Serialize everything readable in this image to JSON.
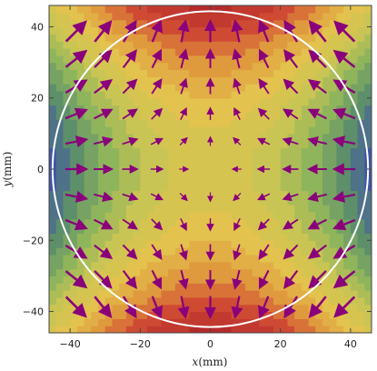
{
  "chart_data": {
    "type": "heatmap",
    "title": "",
    "xlabel": "x",
    "xunit": "(mm)",
    "ylabel": "y",
    "yunit": "(mm)",
    "xlim": [
      -46,
      46
    ],
    "ylim": [
      -46,
      46
    ],
    "xticks": [
      -40,
      -20,
      0,
      20,
      40
    ],
    "yticks": [
      -40,
      -20,
      0,
      20,
      40
    ],
    "xtick_labels": [
      "−40",
      "−20",
      "0",
      "20",
      "40"
    ],
    "ytick_labels": [
      "−40",
      "−20",
      "0",
      "20",
      "40"
    ],
    "grid": false,
    "overlay_circle": {
      "center": [
        0,
        0
      ],
      "radius": 45,
      "color": "#ffffff"
    },
    "vector_field": {
      "grid_spacing": 7.7,
      "arrow_color": "#8a007a"
    },
    "colormap": [
      "#3f55a6",
      "#5c8f6a",
      "#8fb55c",
      "#c9c554",
      "#e3c24e",
      "#e09a3e",
      "#cf4a33",
      "#b52a2a"
    ]
  }
}
